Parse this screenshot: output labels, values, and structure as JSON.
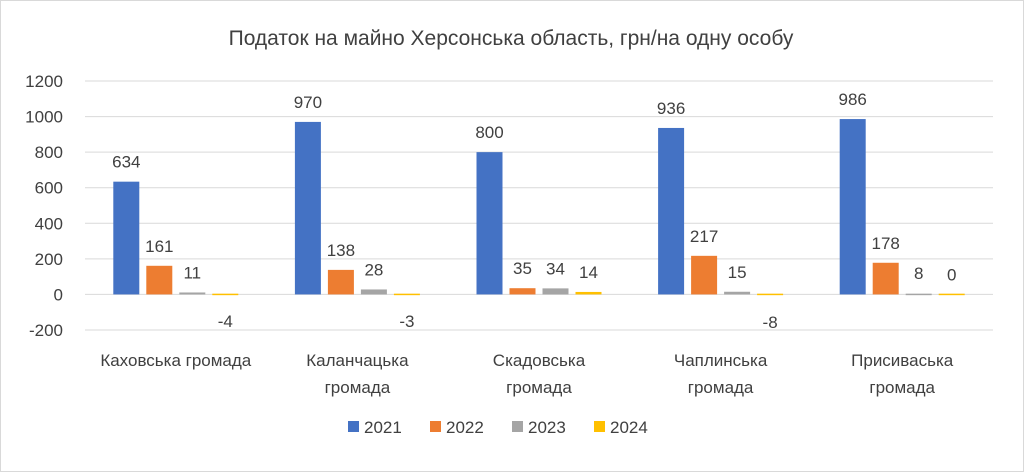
{
  "chart_data": {
    "type": "bar",
    "title": "Податок на майно Херсонська область, грн/на одну особу",
    "categories": [
      [
        "Каховська громада"
      ],
      [
        "Каланчацька",
        "громада"
      ],
      [
        "Скадовська",
        "громада"
      ],
      [
        "Чаплинська",
        "громада"
      ],
      [
        "Присиваська",
        "громада"
      ]
    ],
    "series": [
      {
        "name": "2021",
        "color": "#4472C4",
        "values": [
          634,
          970,
          800,
          936,
          986
        ]
      },
      {
        "name": "2022",
        "color": "#ED7D31",
        "values": [
          161,
          138,
          35,
          217,
          178
        ]
      },
      {
        "name": "2023",
        "color": "#A5A5A5",
        "values": [
          11,
          28,
          34,
          15,
          8
        ]
      },
      {
        "name": "2024",
        "color": "#FFC000",
        "values": [
          -4,
          -3,
          14,
          -8,
          0
        ]
      }
    ],
    "ylim": [
      -200,
      1200
    ],
    "yticks": [
      -200,
      0,
      200,
      400,
      600,
      800,
      1000,
      1200
    ],
    "grid": true,
    "legend": "bottom",
    "xlabel": "",
    "ylabel": ""
  }
}
